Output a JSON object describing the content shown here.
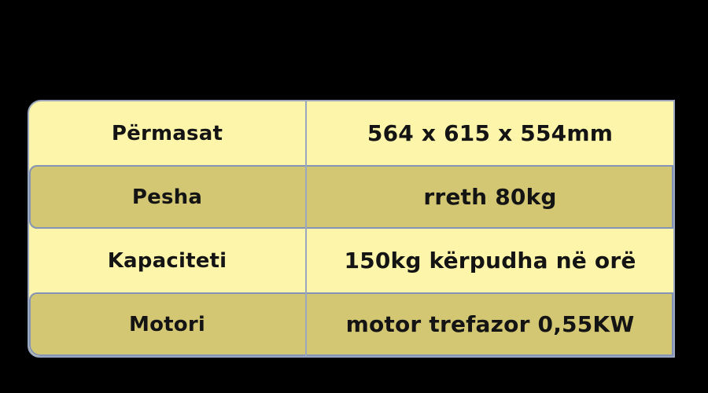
{
  "page": {
    "background_color": "#000000"
  },
  "table": {
    "colors": {
      "light_row": "#FCF5AA",
      "dark_row": "#D3C774",
      "border": "#8C9BB5",
      "text": "#141414"
    },
    "rows": [
      {
        "label": "Përmasat",
        "value": "564 x 615 x 554mm"
      },
      {
        "label": "Pesha",
        "value": "rreth 80kg"
      },
      {
        "label": "Kapaciteti",
        "value": "150kg kërpudha në orë"
      },
      {
        "label": "Motori",
        "value": "motor trefazor 0,55KW"
      }
    ]
  }
}
